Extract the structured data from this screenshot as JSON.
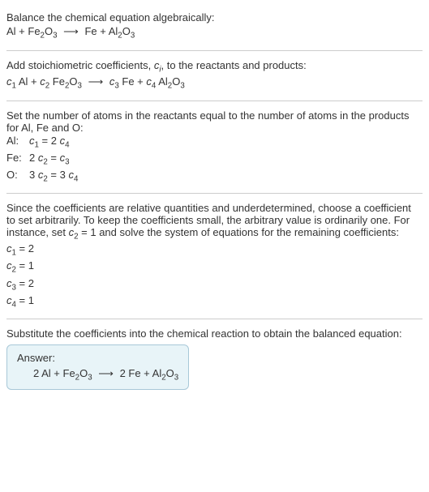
{
  "intro": {
    "line1": "Balance the chemical equation algebraically:",
    "eq_lhs1": "Al + Fe",
    "eq_lhs2": "O",
    "eq_rhs1": "Fe + Al",
    "eq_rhs2": "O",
    "sub2a": "2",
    "sub3a": "3",
    "sub2b": "2",
    "sub3b": "3",
    "arrow": "⟶"
  },
  "stoich": {
    "line1_a": "Add stoichiometric coefficients, ",
    "line1_c": "c",
    "line1_i": "i",
    "line1_b": ", to the reactants and products:",
    "c1": "c",
    "s1": "1",
    "al": " Al + ",
    "c2": "c",
    "s2": "2",
    "fe2o3_a": " Fe",
    "fe2o3_2": "2",
    "fe2o3_b": "O",
    "fe2o3_3": "3",
    "arrow": "⟶",
    "c3": "c",
    "s3": "3",
    "fe": " Fe + ",
    "c4": "c",
    "s4": "4",
    "al2o3_a": " Al",
    "al2o3_2": "2",
    "al2o3_b": "O",
    "al2o3_3": "3"
  },
  "atoms": {
    "line1": "Set the number of atoms in the reactants equal to the number of atoms in the products for Al, Fe and O:",
    "rows": [
      {
        "label": "Al:",
        "c_lhs": "c",
        "s_lhs": "1",
        "eq": " = 2 ",
        "c_rhs": "c",
        "s_rhs": "4",
        "prefix": ""
      },
      {
        "label": "Fe:",
        "c_lhs": "c",
        "s_lhs": "2",
        "eq": " = ",
        "c_rhs": "c",
        "s_rhs": "3",
        "prefix": "2 "
      },
      {
        "label": "O:",
        "c_lhs": "c",
        "s_lhs": "2",
        "eq": " = 3 ",
        "c_rhs": "c",
        "s_rhs": "4",
        "prefix": "3 "
      }
    ]
  },
  "solve": {
    "text_a": "Since the coefficients are relative quantities and underdetermined, choose a coefficient to set arbitrarily. To keep the coefficients small, the arbitrary value is ordinarily one. For instance, set ",
    "c2": "c",
    "s2": "2",
    "text_b": " = 1 and solve the system of equations for the remaining coefficients:",
    "rows": [
      {
        "c": "c",
        "s": "1",
        "val": " = 2"
      },
      {
        "c": "c",
        "s": "2",
        "val": " = 1"
      },
      {
        "c": "c",
        "s": "3",
        "val": " = 2"
      },
      {
        "c": "c",
        "s": "4",
        "val": " = 1"
      }
    ]
  },
  "final": {
    "text": "Substitute the coefficients into the chemical reaction to obtain the balanced equation:",
    "answer_label": "Answer:",
    "eq_a": "2 Al + Fe",
    "eq_2a": "2",
    "eq_b": "O",
    "eq_3a": "3",
    "arrow": "⟶",
    "eq_c": "2 Fe + Al",
    "eq_2b": "2",
    "eq_d": "O",
    "eq_3b": "3"
  }
}
